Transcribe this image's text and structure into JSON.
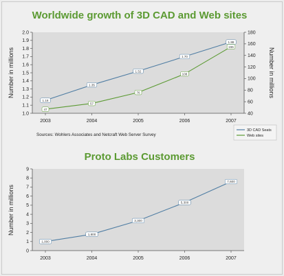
{
  "chart_data": [
    {
      "type": "line",
      "title": "Worldwide growth of 3D CAD and Web sites",
      "x": [
        "2003",
        "2004",
        "2005",
        "2006",
        "2007"
      ],
      "ylabel_left": "Number in millions",
      "ylabel_right": "Number in millions",
      "ylim_left": [
        1.0,
        2.0
      ],
      "ylim_right": [
        40,
        180
      ],
      "yticks_left": [
        "1.0",
        "1.1",
        "1.2",
        "1.3",
        "1.4",
        "1.5",
        "1.6",
        "1.7",
        "1.8",
        "1.9",
        "2.0"
      ],
      "yticks_right": [
        "40",
        "60",
        "80",
        "100",
        "120",
        "140",
        "160",
        "180"
      ],
      "grid": false,
      "legend_position": "bottom-right",
      "series": [
        {
          "name": "3D CAD Seats",
          "axis": "left",
          "color": "#4f7da3",
          "values": [
            1.16,
            1.35,
            1.52,
            1.7,
            1.88
          ],
          "labels": [
            "1.16",
            "1.35",
            "1.52",
            "1.70",
            "1.88"
          ]
        },
        {
          "name": "Web sites",
          "axis": "right",
          "color": "#5b9a32",
          "values": [
            47,
            57,
            76,
            108,
            155
          ],
          "labels": [
            "47",
            "57",
            "76",
            "108",
            "155"
          ]
        }
      ],
      "source": "Sources: Wohlers Associates and Netcraft Web Server Survey"
    },
    {
      "type": "line",
      "title": "Proto Labs Customers",
      "x": [
        "2003",
        "2004",
        "2005",
        "2006",
        "2007"
      ],
      "ylabel": "Number in millions",
      "ylim": [
        0,
        9
      ],
      "yticks": [
        "0",
        "1",
        "2",
        "3",
        "4",
        "5",
        "6",
        "7",
        "8",
        "9"
      ],
      "grid": false,
      "series": [
        {
          "color": "#4f7da3",
          "values": [
            1.0,
            1.8,
            3.3,
            5.3,
            7.6
          ],
          "labels": [
            "1,000",
            "1,800",
            "3,300",
            "5,300",
            "7,600"
          ]
        }
      ]
    }
  ]
}
